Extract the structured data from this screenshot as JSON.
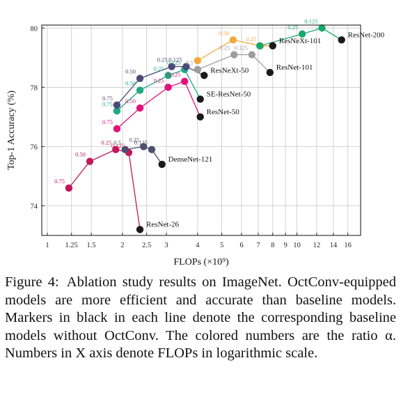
{
  "chart_data": {
    "type": "line",
    "xlabel": "FLOPs (×10⁹)",
    "ylabel": "Top-1 Accuracy (%)",
    "x_scale": "log",
    "xlim": [
      0.95,
      18
    ],
    "ylim": [
      73,
      80.1
    ],
    "x_ticks": [
      1,
      1.25,
      1.5,
      2,
      2.5,
      3,
      4,
      5,
      6,
      7,
      8,
      9,
      10,
      12,
      14,
      16
    ],
    "x_tick_labels": [
      "1",
      "1.25",
      "1.5",
      "2",
      "2.5",
      "3",
      "4",
      "5",
      "6",
      "7",
      "8",
      "9",
      "10",
      "12",
      "14",
      "16"
    ],
    "y_ticks": [
      74,
      76,
      78,
      80
    ],
    "y_tick_labels": [
      "74",
      "76",
      "78",
      "80"
    ],
    "grid": true,
    "series": [
      {
        "name": "ResNet-26",
        "color": "#c2185b",
        "points": [
          {
            "x": 1.22,
            "y": 74.6,
            "alpha": "0.75"
          },
          {
            "x": 1.48,
            "y": 75.5,
            "alpha": "0.50"
          },
          {
            "x": 1.88,
            "y": 75.9,
            "alpha": "0.25"
          },
          {
            "x": 2.12,
            "y": 75.8,
            "alpha": "0.125"
          },
          {
            "x": 2.35,
            "y": 73.2,
            "alpha": ""
          }
        ]
      },
      {
        "name": "DenseNet-121",
        "color": "#4e4e6e",
        "points": [
          {
            "x": 2.05,
            "y": 75.9,
            "alpha": "0.5"
          },
          {
            "x": 2.43,
            "y": 76.0,
            "alpha": "0.25"
          },
          {
            "x": 2.62,
            "y": 75.9,
            "alpha": "0.125"
          },
          {
            "x": 2.88,
            "y": 75.4,
            "alpha": ""
          }
        ]
      },
      {
        "name": "ResNet-50",
        "color": "#e0137a",
        "points": [
          {
            "x": 1.9,
            "y": 76.6,
            "alpha": "0.75"
          },
          {
            "x": 2.35,
            "y": 77.3,
            "alpha": "0.50"
          },
          {
            "x": 3.05,
            "y": 78.0,
            "alpha": "0.25"
          },
          {
            "x": 3.55,
            "y": 78.2,
            "alpha": "0.125"
          },
          {
            "x": 4.1,
            "y": 77.0,
            "alpha": ""
          }
        ]
      },
      {
        "name": "SE-ResNet-50",
        "color": "#22a884",
        "points": [
          {
            "x": 1.9,
            "y": 77.2,
            "alpha": "0.75"
          },
          {
            "x": 2.35,
            "y": 77.9,
            "alpha": "0.50"
          },
          {
            "x": 3.05,
            "y": 78.4,
            "alpha": "0.25"
          },
          {
            "x": 3.55,
            "y": 78.6,
            "alpha": "0.125"
          },
          {
            "x": 4.1,
            "y": 77.6,
            "alpha": ""
          }
        ]
      },
      {
        "name": "ResNeXt-50",
        "color": "#4a4a78",
        "points": [
          {
            "x": 1.9,
            "y": 77.4,
            "alpha": "0.75"
          },
          {
            "x": 2.35,
            "y": 78.3,
            "alpha": "0.50"
          },
          {
            "x": 3.15,
            "y": 78.7,
            "alpha": "0.25"
          },
          {
            "x": 3.6,
            "y": 78.7,
            "alpha": "0.125"
          },
          {
            "x": 4.25,
            "y": 78.4,
            "alpha": ""
          }
        ]
      },
      {
        "name": "ResNet-101",
        "color": "#9e9e9e",
        "points": [
          {
            "x": 4.0,
            "y": 78.6,
            "alpha": "0.5"
          },
          {
            "x": 5.6,
            "y": 79.1,
            "alpha": "0.25"
          },
          {
            "x": 6.6,
            "y": 79.1,
            "alpha": "0.125"
          },
          {
            "x": 7.8,
            "y": 78.5,
            "alpha": ""
          }
        ]
      },
      {
        "name": "ResNeXt-101",
        "color": "#f2a93b",
        "points": [
          {
            "x": 4.0,
            "y": 78.9,
            "alpha": ""
          },
          {
            "x": 5.55,
            "y": 79.6,
            "alpha": "0.50"
          },
          {
            "x": 7.15,
            "y": 79.4,
            "alpha": "0.25"
          },
          {
            "x": 8.0,
            "y": 79.4,
            "alpha": ""
          }
        ]
      },
      {
        "name": "ResNet-200",
        "color": "#17a86b",
        "points": [
          {
            "x": 7.1,
            "y": 79.4,
            "alpha": ""
          },
          {
            "x": 10.5,
            "y": 79.8,
            "alpha": "0.25"
          },
          {
            "x": 12.6,
            "y": 80.0,
            "alpha": "0.125"
          },
          {
            "x": 15.1,
            "y": 79.6,
            "alpha": ""
          }
        ]
      }
    ],
    "baseline_marker_color": "#1a1a1a"
  },
  "caption": {
    "label": "Figure 4:",
    "text": "Ablation study results on ImageNet. OctConv-equipped models are more efficient and accurate than baseline models. Markers in black in each line denote the corresponding baseline models without OctConv. The colored numbers are the ratio α. Numbers in X axis denote FLOPs in logarithmic scale."
  }
}
